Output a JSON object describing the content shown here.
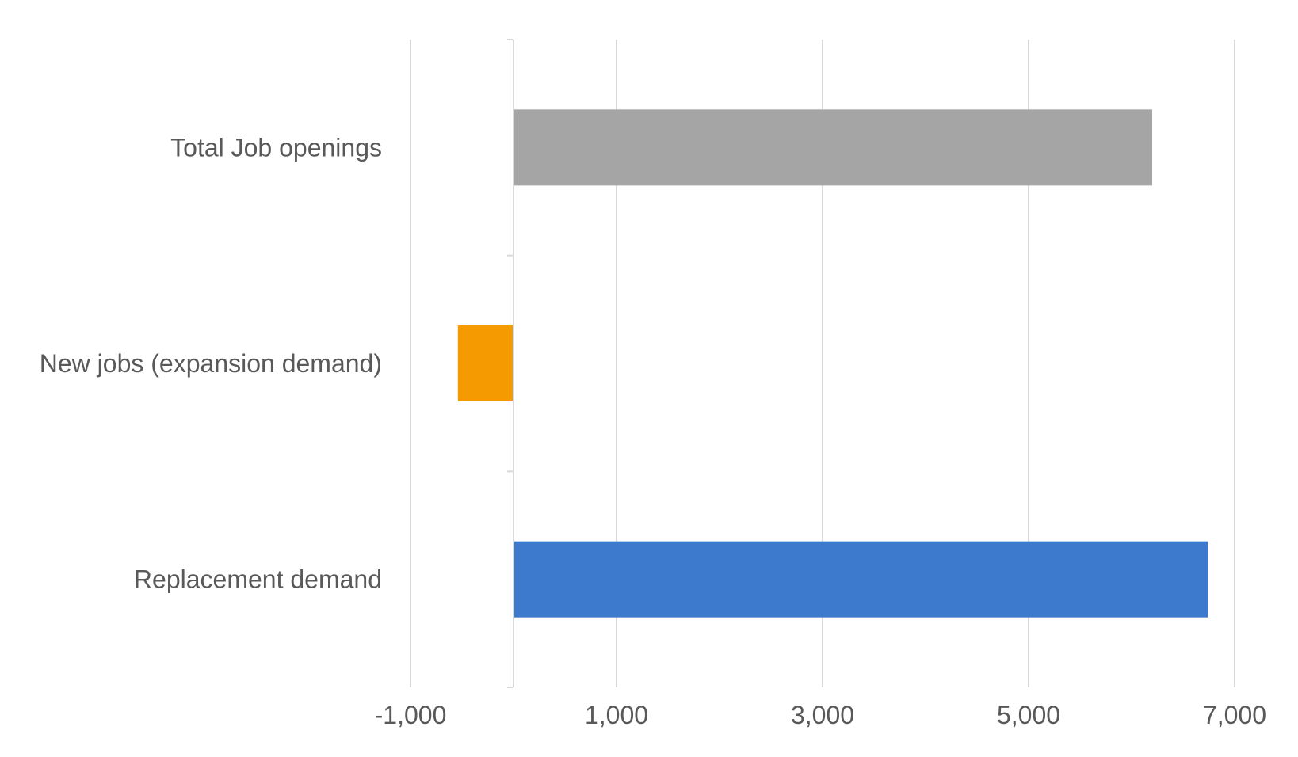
{
  "chart_data": {
    "type": "bar",
    "orientation": "horizontal",
    "title": "",
    "xlabel": "",
    "ylabel": "",
    "categories": [
      "Replacement demand",
      "New jobs (expansion demand)",
      "Total Job openings"
    ],
    "values": [
      6740,
      -540,
      6200
    ],
    "colors": [
      "#3d7acd",
      "#f59a00",
      "#a5a5a5"
    ],
    "xlim": [
      -1000,
      7000
    ],
    "xticks": [
      -1000,
      1000,
      3000,
      5000,
      7000
    ],
    "xtick_labels": [
      "-1,000",
      "1,000",
      "3,000",
      "5,000",
      "7,000"
    ],
    "grid": true,
    "gridline_color": "#d9d9d9",
    "text_color": "#595959",
    "legend": "none"
  }
}
